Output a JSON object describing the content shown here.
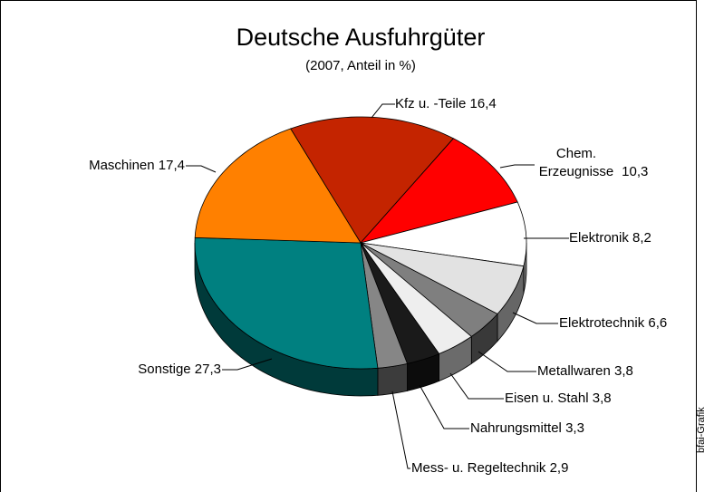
{
  "chart_data": {
    "type": "pie",
    "title": "Deutsche Ausfuhrgüter",
    "subtitle": "(2007, Anteil in %)",
    "credit": "bfai-Grafik",
    "categories": [
      "Kfz u. -Teile",
      "Chem. Erzeugnisse",
      "Elektronik",
      "Elektrotechnik",
      "Metallwaren",
      "Eisen u. Stahl",
      "Nahrungsmittel",
      "Mess- u. Regeltechnik",
      "Sonstige",
      "Maschinen"
    ],
    "values": [
      16.4,
      10.3,
      8.2,
      6.6,
      3.8,
      3.8,
      3.3,
      2.9,
      27.3,
      17.4
    ],
    "value_labels": [
      "16,4",
      "10,3",
      "8,2",
      "6,6",
      "3,8",
      "3,8",
      "3,3",
      "2,9",
      "27,3",
      "17,4"
    ],
    "colors": [
      "#c42400",
      "#ff0000",
      "#ffffff",
      "#e2e2e2",
      "#7f7f7f",
      "#eeeeee",
      "#1a1a1a",
      "#868686",
      "#008080",
      "#ff8000"
    ]
  }
}
